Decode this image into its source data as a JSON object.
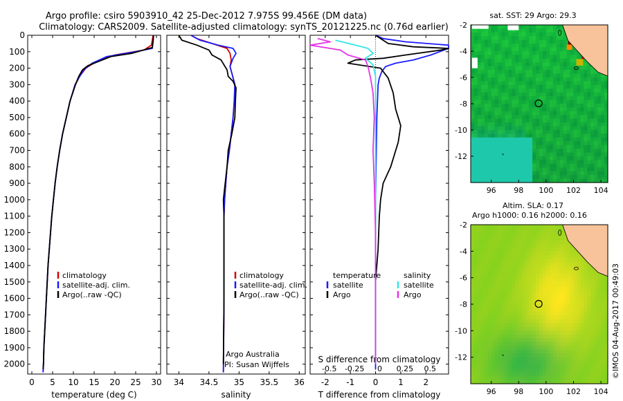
{
  "header": {
    "line1": "Argo profile: csiro 5903910_42 25-Dec-2012 7.975S 99.456E (DM data)",
    "line2": "Climatology: CARS2009. Satellite-adjusted climatology: synTS_20121225.nc (0.76d earlier)"
  },
  "colors": {
    "climatology": "#d40000",
    "satellite": "#1a1aff",
    "argo": "#000000",
    "salinity_sat": "#33e6e6",
    "salinity_argo": "#e633e6",
    "land": "#f8c39a"
  },
  "depth_axis": {
    "ticks": [
      0,
      100,
      200,
      300,
      400,
      500,
      600,
      700,
      800,
      900,
      1000,
      1100,
      1200,
      1300,
      1400,
      1500,
      1600,
      1700,
      1800,
      1900,
      2000
    ]
  },
  "legend": {
    "climatology": "climatology",
    "satellite": "satellite-adj. clim.",
    "argo": "Argo(..raw -QC)"
  },
  "diff_legend": {
    "temperature": "temperature",
    "salinity": "salinity",
    "satellite": "satellite",
    "argo": "Argo"
  },
  "credits": {
    "line1": "Argo Australia",
    "line2": "PI: Susan Wijffels"
  },
  "stamp": "©IMOS 04-Aug-2017 00:49:03",
  "map_sst": {
    "title": "sat. SST: 29 Argo: 29.3"
  },
  "map_sla": {
    "title1": "Altim. SLA: 0.17",
    "title2": "Argo h1000: 0.16 h2000: 0.16"
  },
  "chart_data": [
    {
      "type": "line",
      "name": "temperature-profile",
      "xlabel": "temperature (deg C)",
      "xlim": [
        -1,
        31
      ],
      "ylim": [
        2060,
        0
      ],
      "xticks": [
        0,
        5,
        10,
        15,
        20,
        25,
        30
      ],
      "series": [
        {
          "name": "climatology",
          "points": [
            [
              29.2,
              0
            ],
            [
              29.0,
              30
            ],
            [
              28.8,
              60
            ],
            [
              27,
              90
            ],
            [
              20,
              120
            ],
            [
              15.5,
              160
            ],
            [
              13,
              200
            ],
            [
              11.5,
              250
            ],
            [
              10.5,
              300
            ],
            [
              9.2,
              400
            ],
            [
              8.3,
              500
            ],
            [
              7.4,
              600
            ],
            [
              6.7,
              700
            ],
            [
              6.1,
              800
            ],
            [
              5.6,
              900
            ],
            [
              5.2,
              1000
            ],
            [
              4.8,
              1100
            ],
            [
              4.5,
              1200
            ],
            [
              4.2,
              1300
            ],
            [
              3.9,
              1400
            ],
            [
              3.7,
              1500
            ],
            [
              3.5,
              1600
            ],
            [
              3.3,
              1700
            ],
            [
              3.1,
              1800
            ],
            [
              2.9,
              1900
            ],
            [
              2.8,
              2000
            ],
            [
              2.7,
              2050
            ]
          ]
        },
        {
          "name": "satellite-adj. clim.",
          "points": [
            [
              29.3,
              0
            ],
            [
              29.2,
              40
            ],
            [
              29,
              80
            ],
            [
              25,
              100
            ],
            [
              18,
              130
            ],
            [
              14.5,
              170
            ],
            [
              12.5,
              210
            ],
            [
              11.3,
              260
            ],
            [
              10.4,
              300
            ],
            [
              9.2,
              400
            ],
            [
              8.3,
              500
            ],
            [
              7.4,
              600
            ],
            [
              6.7,
              700
            ],
            [
              6.1,
              800
            ],
            [
              5.6,
              900
            ],
            [
              5.2,
              1000
            ],
            [
              4.8,
              1100
            ],
            [
              4.5,
              1200
            ],
            [
              4.2,
              1300
            ],
            [
              3.9,
              1400
            ],
            [
              3.7,
              1500
            ],
            [
              3.5,
              1600
            ],
            [
              3.3,
              1700
            ],
            [
              3.1,
              1800
            ],
            [
              2.9,
              1900
            ],
            [
              2.8,
              2000
            ],
            [
              2.7,
              2050
            ]
          ]
        },
        {
          "name": "Argo",
          "points": [
            [
              29.3,
              0
            ],
            [
              29.2,
              30
            ],
            [
              29,
              75
            ],
            [
              24,
              110
            ],
            [
              19,
              130
            ],
            [
              16,
              160
            ],
            [
              13.5,
              185
            ],
            [
              12.2,
              210
            ],
            [
              11.3,
              250
            ],
            [
              10.5,
              300
            ],
            [
              9.2,
              400
            ],
            [
              8.3,
              500
            ],
            [
              7.4,
              600
            ],
            [
              6.7,
              700
            ],
            [
              6.1,
              800
            ],
            [
              5.6,
              900
            ],
            [
              5.2,
              1000
            ],
            [
              4.8,
              1100
            ],
            [
              4.5,
              1200
            ],
            [
              4.2,
              1300
            ],
            [
              3.9,
              1400
            ],
            [
              3.7,
              1500
            ],
            [
              3.5,
              1600
            ],
            [
              3.3,
              1700
            ],
            [
              3.1,
              1800
            ],
            [
              2.9,
              1900
            ],
            [
              2.8,
              2000
            ],
            [
              2.7,
              2030
            ]
          ]
        }
      ]
    },
    {
      "type": "line",
      "name": "salinity-profile",
      "xlabel": "salinity",
      "xlim": [
        33.8,
        36.1
      ],
      "ylim": [
        2060,
        0
      ],
      "xticks": [
        34,
        34.5,
        35,
        35.5,
        36
      ],
      "series": [
        {
          "name": "climatology",
          "points": [
            [
              34.2,
              0
            ],
            [
              34.3,
              20
            ],
            [
              34.55,
              50
            ],
            [
              34.8,
              80
            ],
            [
              34.85,
              110
            ],
            [
              34.87,
              150
            ],
            [
              34.85,
              190
            ],
            [
              34.88,
              230
            ],
            [
              34.93,
              300
            ],
            [
              34.92,
              400
            ],
            [
              34.9,
              500
            ],
            [
              34.87,
              600
            ],
            [
              34.84,
              700
            ],
            [
              34.8,
              800
            ],
            [
              34.78,
              900
            ],
            [
              34.76,
              1000
            ],
            [
              34.75,
              1100
            ],
            [
              34.75,
              1300
            ],
            [
              34.75,
              1600
            ],
            [
              34.74,
              2050
            ]
          ]
        },
        {
          "name": "satellite-adj. clim.",
          "points": [
            [
              34.2,
              0
            ],
            [
              34.35,
              30
            ],
            [
              34.65,
              60
            ],
            [
              34.9,
              80
            ],
            [
              34.95,
              110
            ],
            [
              34.9,
              140
            ],
            [
              34.85,
              190
            ],
            [
              34.88,
              230
            ],
            [
              34.93,
              300
            ],
            [
              34.92,
              400
            ],
            [
              34.9,
              500
            ],
            [
              34.87,
              600
            ],
            [
              34.84,
              700
            ],
            [
              34.8,
              800
            ],
            [
              34.78,
              900
            ],
            [
              34.76,
              1000
            ],
            [
              34.75,
              1100
            ],
            [
              34.75,
              1300
            ],
            [
              34.75,
              1600
            ],
            [
              34.74,
              2050
            ]
          ]
        },
        {
          "name": "Argo",
          "points": [
            [
              34.0,
              0
            ],
            [
              34.05,
              30
            ],
            [
              34.3,
              60
            ],
            [
              34.5,
              90
            ],
            [
              34.55,
              120
            ],
            [
              34.7,
              150
            ],
            [
              34.75,
              180
            ],
            [
              34.8,
              210
            ],
            [
              34.82,
              250
            ],
            [
              34.9,
              280
            ],
            [
              34.95,
              320
            ],
            [
              34.94,
              400
            ],
            [
              34.93,
              500
            ],
            [
              34.88,
              600
            ],
            [
              34.82,
              700
            ],
            [
              34.8,
              800
            ],
            [
              34.77,
              900
            ],
            [
              34.74,
              1000
            ],
            [
              34.75,
              1100
            ],
            [
              34.75,
              1300
            ],
            [
              34.75,
              1600
            ],
            [
              34.74,
              2000
            ]
          ]
        }
      ]
    },
    {
      "type": "line",
      "name": "difference-profile",
      "xlabel": "T difference from climatology",
      "toplabel": "S difference from climatology",
      "xlim": [
        -2.6,
        2.9
      ],
      "ylim": [
        2060,
        0
      ],
      "xticks": [
        -2,
        -1,
        0,
        1,
        2
      ],
      "sticks_label": [
        "-0.5",
        "-0.25",
        "0",
        "0.25",
        "0.5"
      ],
      "series": [
        {
          "name": "temperature satellite",
          "points": [
            [
              0,
              0
            ],
            [
              0.3,
              20
            ],
            [
              1.2,
              40
            ],
            [
              2.9,
              60
            ],
            [
              2.9,
              80
            ],
            [
              2.2,
              120
            ],
            [
              1.5,
              150
            ],
            [
              0.8,
              170
            ],
            [
              0.4,
              190
            ],
            [
              0.25,
              220
            ],
            [
              0.15,
              260
            ],
            [
              0.1,
              300
            ],
            [
              0.05,
              500
            ],
            [
              0,
              1000
            ],
            [
              0,
              2030
            ]
          ]
        },
        {
          "name": "temperature Argo",
          "points": [
            [
              0,
              0
            ],
            [
              0.5,
              50
            ],
            [
              1.5,
              70
            ],
            [
              2.9,
              80
            ],
            [
              2.6,
              90
            ],
            [
              1.2,
              120
            ],
            [
              0.3,
              140
            ],
            [
              -0.8,
              150
            ],
            [
              -1.1,
              170
            ],
            [
              0.2,
              200
            ],
            [
              0.5,
              260
            ],
            [
              0.7,
              350
            ],
            [
              0.8,
              450
            ],
            [
              1.0,
              550
            ],
            [
              0.9,
              650
            ],
            [
              0.6,
              800
            ],
            [
              0.3,
              900
            ],
            [
              0.2,
              1000
            ],
            [
              0.15,
              1100
            ],
            [
              0.1,
              1300
            ],
            [
              0,
              1500
            ],
            [
              0,
              2000
            ]
          ]
        },
        {
          "name": "salinity satellite",
          "points": [
            [
              -1.6,
              30
            ],
            [
              -0.8,
              60
            ],
            [
              -0.3,
              80
            ],
            [
              -0.1,
              110
            ],
            [
              -0.4,
              140
            ],
            [
              -0.1,
              180
            ],
            [
              0,
              250
            ],
            [
              0,
              500
            ],
            [
              0,
              1000
            ],
            [
              0,
              2000
            ]
          ]
        },
        {
          "name": "salinity Argo",
          "points": [
            [
              -2.3,
              20
            ],
            [
              -1.8,
              40
            ],
            [
              -2.6,
              60
            ],
            [
              -1.4,
              90
            ],
            [
              -1.1,
              120
            ],
            [
              -0.4,
              150
            ],
            [
              -0.3,
              190
            ],
            [
              -0.2,
              260
            ],
            [
              -0.1,
              350
            ],
            [
              -0.05,
              500
            ],
            [
              -0.1,
              700
            ],
            [
              -0.05,
              900
            ],
            [
              0,
              1200
            ],
            [
              0,
              2000
            ]
          ]
        }
      ]
    }
  ],
  "map_axes": {
    "x_ticks": [
      96,
      98,
      100,
      102,
      104
    ],
    "y_ticks": [
      -2,
      -4,
      -6,
      -8,
      -10,
      -12
    ]
  }
}
